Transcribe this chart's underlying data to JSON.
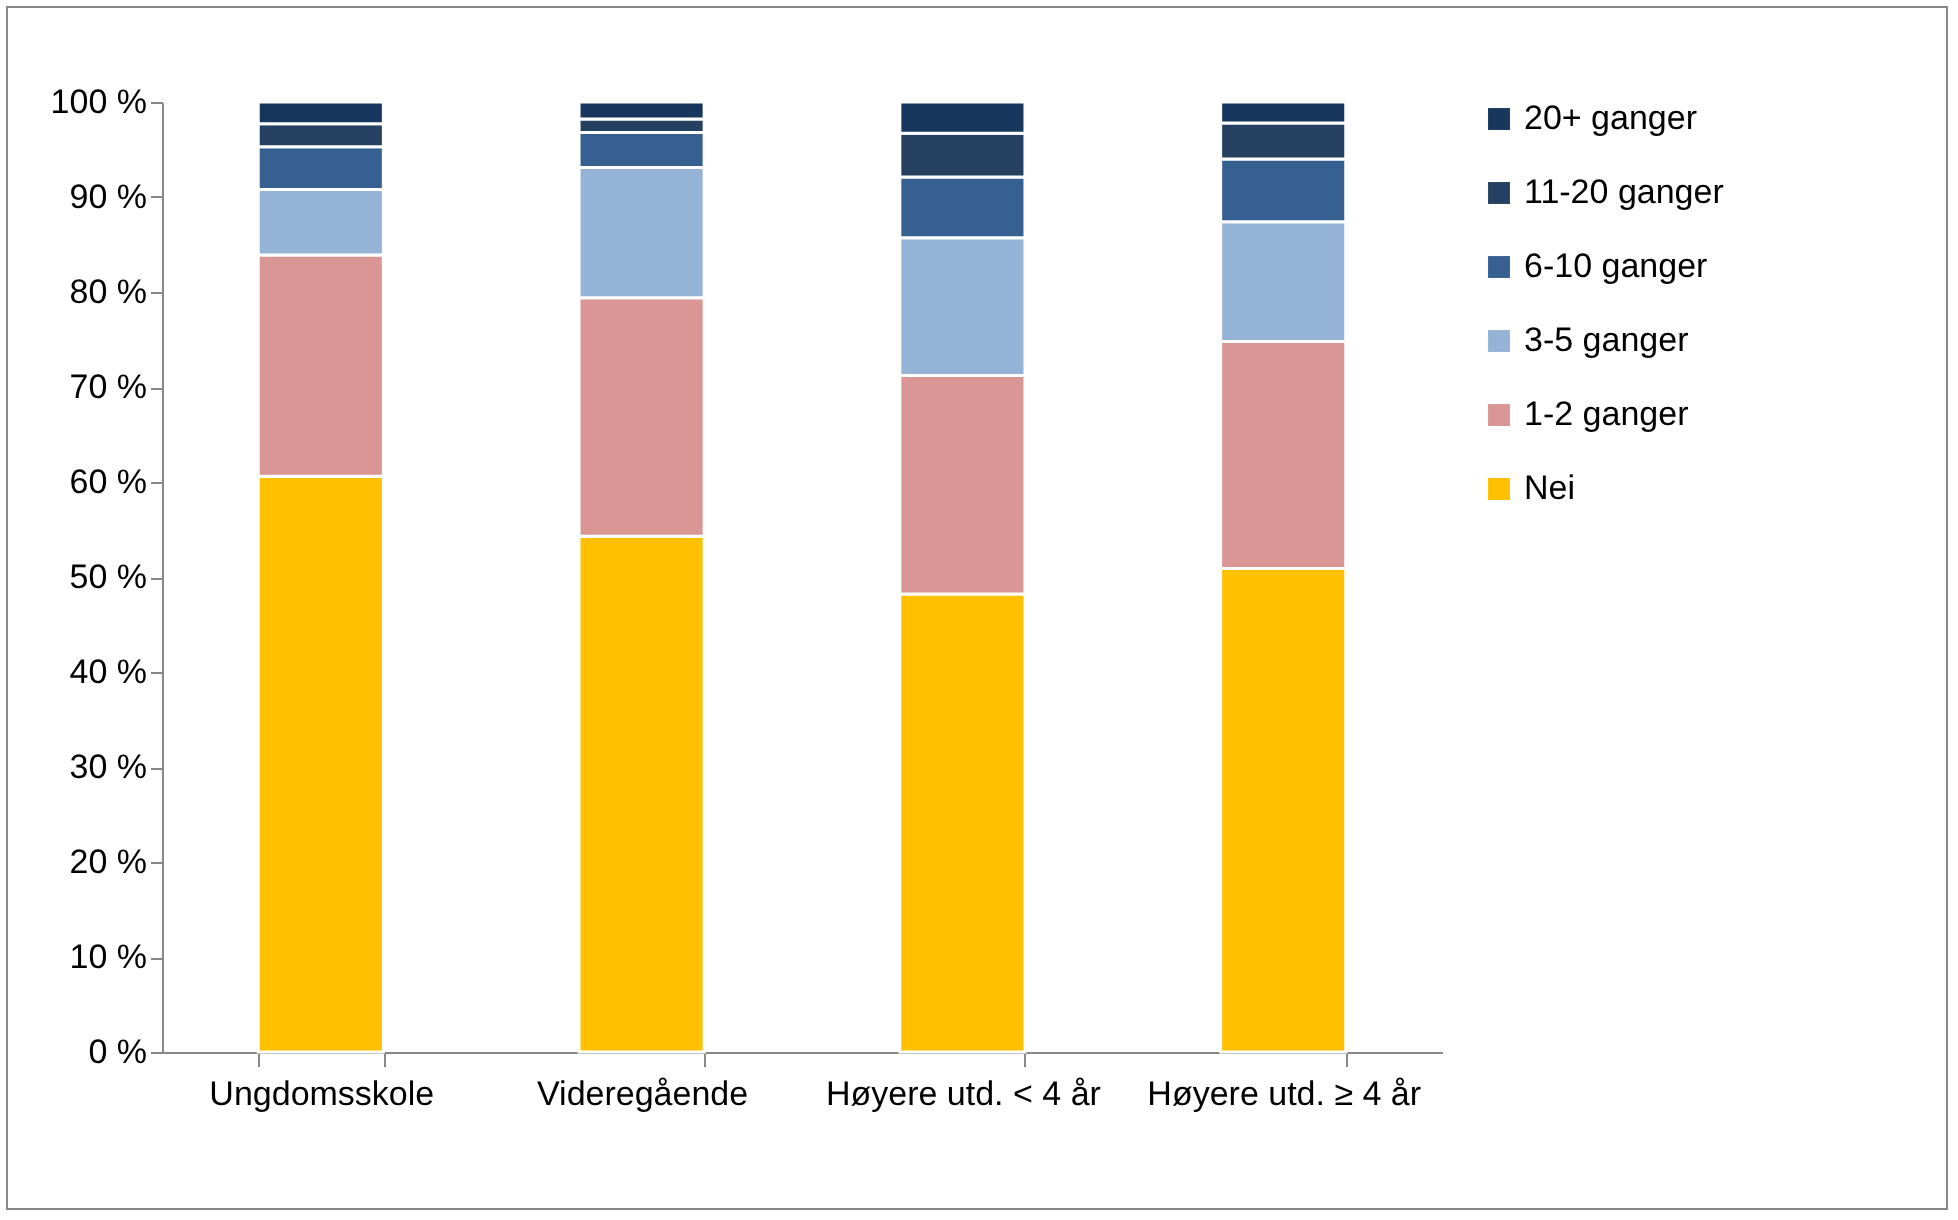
{
  "chart_data": {
    "type": "bar",
    "stacked": true,
    "legend": "right",
    "grid": false,
    "categories": [
      "Ungdomsskole",
      "Videregående",
      "Høyere utd. < 4 år",
      "Høyere utd. ≥ 4 år"
    ],
    "series": [
      {
        "name": "Nei",
        "color": "#ffc000",
        "values": [
          60.6,
          54.3,
          48.2,
          50.9
        ]
      },
      {
        "name": "1-2 ganger",
        "color": "#d99694",
        "values": [
          23.3,
          25.1,
          23.0,
          23.9
        ]
      },
      {
        "name": "3-5 ganger",
        "color": "#95b3d7",
        "values": [
          6.9,
          13.7,
          14.5,
          12.6
        ]
      },
      {
        "name": "6-10 ganger",
        "color": "#366092",
        "values": [
          4.5,
          3.7,
          6.4,
          6.6
        ]
      },
      {
        "name": "11-20 ganger",
        "color": "#254061",
        "values": [
          2.4,
          1.4,
          4.6,
          3.8
        ]
      },
      {
        "name": "20+ ganger",
        "color": "#17375e",
        "values": [
          2.3,
          1.8,
          3.3,
          2.2
        ]
      }
    ],
    "ylim": [
      0,
      100
    ],
    "yticks": [
      {
        "value": 0,
        "label": "0 %"
      },
      {
        "value": 10,
        "label": "10 %"
      },
      {
        "value": 20,
        "label": "20 %"
      },
      {
        "value": 30,
        "label": "30 %"
      },
      {
        "value": 40,
        "label": "40 %"
      },
      {
        "value": 50,
        "label": "50 %"
      },
      {
        "value": 60,
        "label": "60 %"
      },
      {
        "value": 70,
        "label": "70 %"
      },
      {
        "value": 80,
        "label": "80 %"
      },
      {
        "value": 90,
        "label": "90 %"
      },
      {
        "value": 100,
        "label": "100 %"
      }
    ]
  }
}
